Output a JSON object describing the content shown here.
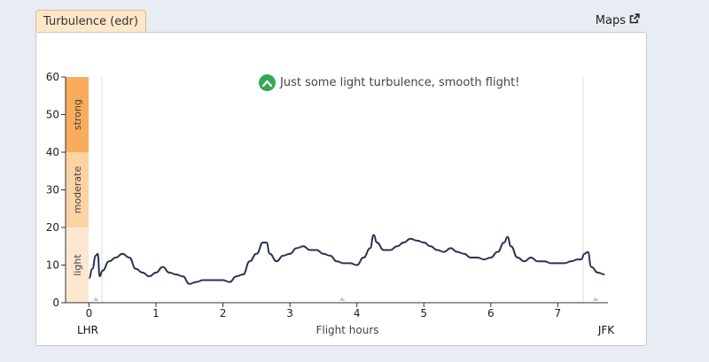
{
  "tab": {
    "label": "Turbulence (edr)"
  },
  "maps_link": {
    "label": "Maps",
    "icon": "external-link-icon"
  },
  "status": {
    "icon": "chevron-up-icon",
    "icon_color": "#35a853",
    "message": "Just some light turbulence, smooth flight!"
  },
  "chart_data": {
    "type": "line",
    "xlabel": "Flight hours",
    "ylim": [
      0,
      60
    ],
    "xlim": [
      -0.35,
      7.75
    ],
    "y_ticks": [
      0,
      10,
      20,
      30,
      40,
      50,
      60
    ],
    "x_ticks": [
      0,
      1,
      2,
      3,
      4,
      5,
      6,
      7
    ],
    "origin_label": "LHR",
    "destination_label": "JFK",
    "bands": [
      {
        "label": "light",
        "from": 0,
        "to": 20,
        "color": "#fde7d0"
      },
      {
        "label": "moderate",
        "from": 20,
        "to": 40,
        "color": "#fcd3a4"
      },
      {
        "label": "strong",
        "from": 40,
        "to": 60,
        "color": "#f9ad5c"
      }
    ],
    "line_color": "#2b3352",
    "series": [
      {
        "x": [
          0,
          0.05,
          0.1,
          0.13,
          0.16,
          0.2,
          0.3,
          0.4,
          0.5,
          0.6,
          0.7,
          0.8,
          0.9,
          1.0,
          1.1,
          1.2,
          1.3,
          1.4,
          1.5,
          1.6,
          1.7,
          1.8,
          1.9,
          2.0,
          2.1,
          2.2,
          2.3,
          2.4,
          2.5,
          2.6,
          2.65,
          2.7,
          2.8,
          2.9,
          3.0,
          3.1,
          3.2,
          3.3,
          3.4,
          3.5,
          3.6,
          3.7,
          3.8,
          3.9,
          4.0,
          4.1,
          4.2,
          4.25,
          4.3,
          4.4,
          4.5,
          4.6,
          4.7,
          4.8,
          4.9,
          5.0,
          5.1,
          5.2,
          5.3,
          5.4,
          5.5,
          5.6,
          5.7,
          5.8,
          5.9,
          6.0,
          6.1,
          6.2,
          6.25,
          6.3,
          6.4,
          6.5,
          6.6,
          6.7,
          6.8,
          6.9,
          7.0,
          7.1,
          7.2,
          7.3,
          7.35,
          7.4,
          7.45,
          7.5,
          7.6,
          7.7
        ],
        "y": [
          6.5,
          9,
          12.5,
          13,
          7,
          8.5,
          11,
          12,
          13,
          12,
          9,
          8,
          7,
          8,
          9.5,
          8,
          7.5,
          7,
          5,
          5.5,
          6,
          6,
          6,
          6,
          5.5,
          7,
          7.5,
          11,
          13,
          16,
          16,
          13,
          11,
          12.5,
          13,
          14.5,
          15,
          14,
          14,
          13,
          12.5,
          11,
          10.5,
          10.5,
          10,
          12,
          14.5,
          18,
          16,
          14,
          14,
          15,
          16,
          17,
          16.5,
          16,
          15,
          14,
          13.5,
          14.5,
          13.5,
          13,
          12,
          12,
          11.5,
          12,
          13.5,
          16,
          17.5,
          15,
          12,
          11,
          12,
          11,
          11,
          10.5,
          10.5,
          10.5,
          11,
          11.5,
          11.5,
          13,
          13.5,
          9.5,
          8,
          7.5
        ]
      }
    ]
  }
}
